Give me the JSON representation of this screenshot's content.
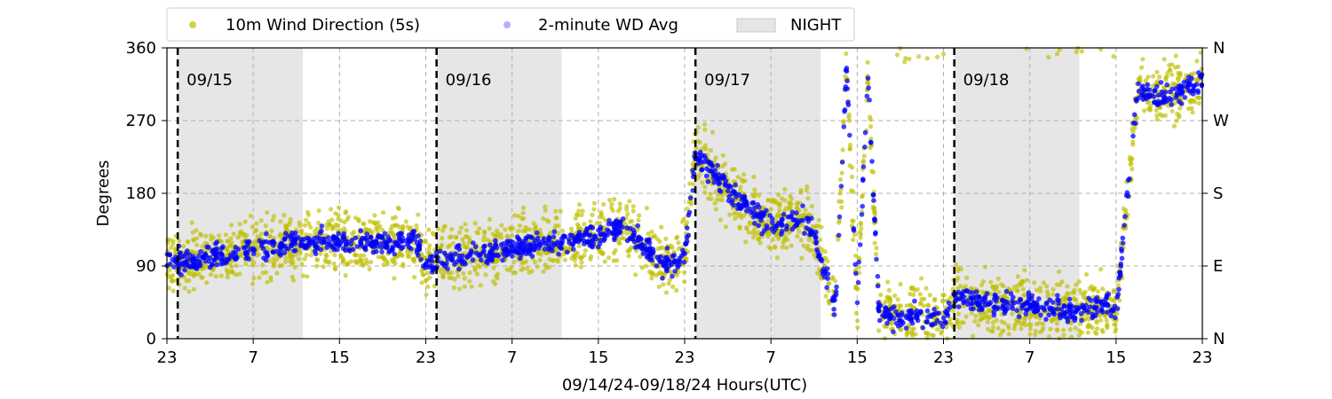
{
  "chart_data": {
    "type": "scatter",
    "title": "",
    "xlabel": "09/14/24-09/18/24  Hours(UTC)",
    "ylabel": "Degrees",
    "x_unit": "hours since 09/14/24 23:00 UTC",
    "xlim": [
      0,
      96
    ],
    "ylim": [
      0,
      360
    ],
    "x_tick_values": [
      0,
      8,
      16,
      24,
      32,
      40,
      48,
      56,
      64,
      72,
      80,
      88,
      96
    ],
    "x_tick_labels": [
      "23",
      "7",
      "15",
      "23",
      "7",
      "15",
      "23",
      "7",
      "15",
      "23",
      "7",
      "15",
      "23"
    ],
    "y_ticks": [
      0,
      90,
      180,
      270,
      360
    ],
    "y_tick_labels": [
      "0",
      "90",
      "180",
      "270",
      "360"
    ],
    "right_axis_labels": [
      "N",
      "E",
      "S",
      "W",
      "N"
    ],
    "grid": true,
    "legend_position": "top",
    "legend": [
      {
        "label": "10m Wind Direction (5s)",
        "marker": "dot",
        "color": "#bfbf00"
      },
      {
        "label": "2-minute WD Avg",
        "marker": "dot",
        "color": "#0000ff"
      },
      {
        "label": "NIGHT",
        "marker": "patch",
        "color": "#e6e6e6"
      }
    ],
    "night_spans": [
      [
        1,
        12.6
      ],
      [
        25,
        36.6
      ],
      [
        49,
        60.6
      ],
      [
        73,
        84.6
      ]
    ],
    "day_markers": [
      {
        "x": 1,
        "label": "09/15"
      },
      {
        "x": 25,
        "label": "09/16"
      },
      {
        "x": 49,
        "label": "09/17"
      },
      {
        "x": 73,
        "label": "09/18"
      }
    ],
    "series": [
      {
        "name": "10m Wind Direction (5s)",
        "color": "#bfbf00",
        "spread": 38,
        "x": [
          0,
          4,
          8,
          12,
          16,
          20,
          23,
          24,
          28,
          32,
          36,
          40,
          42,
          44,
          46,
          48,
          49,
          51,
          53,
          55,
          57,
          59,
          60,
          61,
          62,
          63,
          64,
          65,
          66,
          68,
          70,
          72,
          73,
          76,
          80,
          84,
          87,
          88,
          90,
          92,
          94,
          96
        ],
        "y": [
          95,
          100,
          110,
          118,
          120,
          118,
          122,
          90,
          105,
          110,
          120,
          128,
          140,
          120,
          90,
          100,
          230,
          200,
          170,
          150,
          140,
          150,
          130,
          80,
          40,
          340,
          40,
          330,
          35,
          25,
          30,
          20,
          55,
          45,
          40,
          35,
          40,
          30,
          310,
          300,
          305,
          320
        ]
      },
      {
        "name": "2-minute WD Avg",
        "color": "#0000ff",
        "spread": 14,
        "x": [
          0,
          4,
          8,
          12,
          16,
          20,
          23,
          24,
          28,
          32,
          36,
          40,
          42,
          44,
          46,
          48,
          49,
          51,
          53,
          55,
          57,
          59,
          60,
          61,
          62,
          63,
          64,
          65,
          66,
          68,
          70,
          72,
          73,
          76,
          80,
          84,
          87,
          88,
          90,
          92,
          94,
          96
        ],
        "y": [
          95,
          100,
          110,
          118,
          120,
          118,
          122,
          90,
          105,
          110,
          120,
          128,
          140,
          120,
          90,
          100,
          230,
          200,
          170,
          150,
          140,
          150,
          130,
          80,
          40,
          340,
          40,
          330,
          35,
          25,
          30,
          20,
          55,
          45,
          40,
          35,
          40,
          30,
          310,
          300,
          305,
          320
        ]
      }
    ]
  }
}
